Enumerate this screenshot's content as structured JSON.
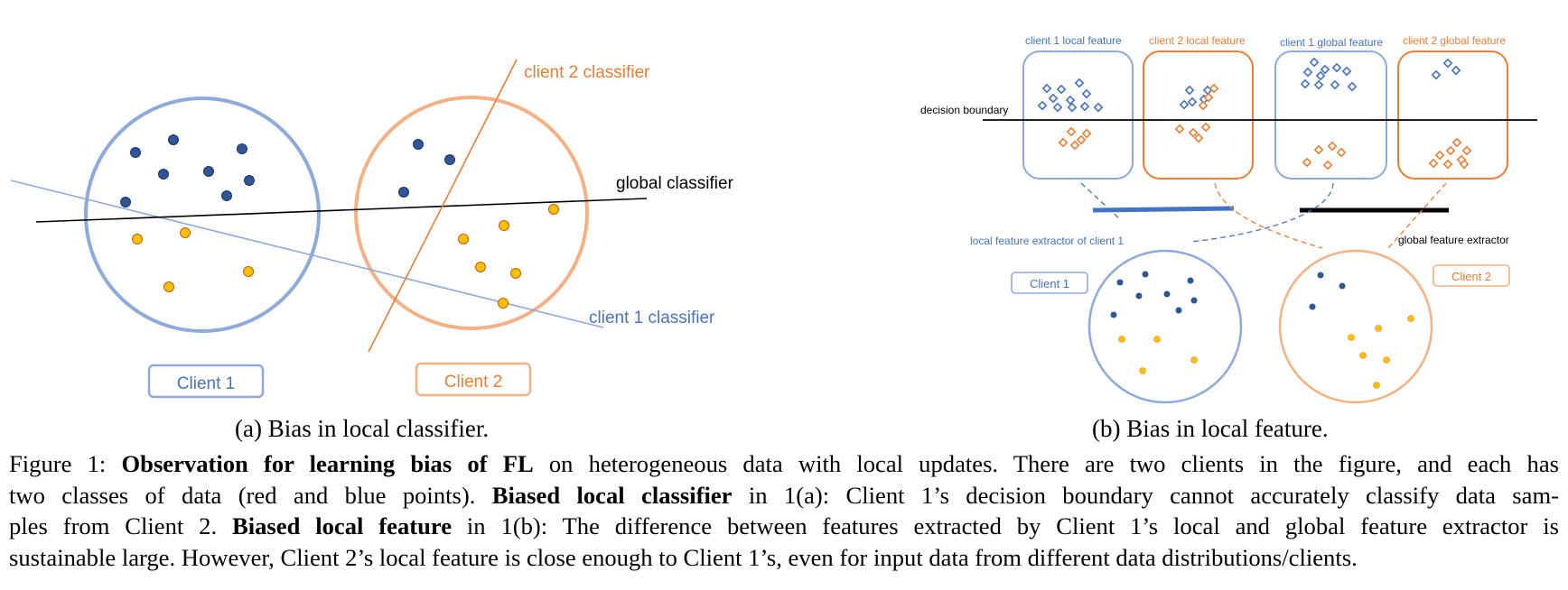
{
  "panel_a": {
    "labels": {
      "client2_classifier": "client 2 classifier",
      "global_classifier": "global classifier",
      "client1_classifier": "client 1 classifier"
    },
    "client_boxes": {
      "client1": "Client 1",
      "client2": "Client 2"
    },
    "colors": {
      "client1": "#8eaadb",
      "client2": "#f4b183",
      "blue_point": "#2f5597",
      "orange_point": "#ffc000",
      "client1_line": "#8eaadb",
      "client2_line": "#ed7d31",
      "global_line": "#000000"
    }
  },
  "panel_b": {
    "feature_labels": {
      "c1_local": "client 1 local feature",
      "c2_local": "client 2 local feature",
      "c1_global": "client 1 global feature",
      "c2_global": "client 2 global feature"
    },
    "decision_boundary": "decision boundary",
    "local_extractor": "local feature extractor of client 1",
    "global_extractor": "global feature extractor",
    "client_boxes": {
      "client1": "Client 1",
      "client2": "Client 2"
    },
    "colors": {
      "blue": "#4472c4",
      "orange": "#ed7d31",
      "client1_border": "#8eaadb",
      "client2_border": "#f4b183"
    }
  },
  "subcaptions": {
    "a_tag": "(a)",
    "a_text": "Bias in local classifier.",
    "b_tag": "(b)",
    "b_text": "Bias in local feature."
  },
  "caption": {
    "lines": [
      [
        {
          "t": "Figure 1: ",
          "b": false
        },
        {
          "t": "Observation for learning bias of FL",
          "b": true
        },
        {
          "t": " on heterogeneous data with local updates. There are two clients in the figure, and each has",
          "b": false
        }
      ],
      [
        {
          "t": "two classes of data (red and blue points). ",
          "b": false
        },
        {
          "t": "Biased local classifier",
          "b": true
        },
        {
          "t": " in 1(a): Client 1’s decision boundary cannot accurately classify data sam-",
          "b": false
        }
      ],
      [
        {
          "t": "ples from Client 2. ",
          "b": false
        },
        {
          "t": "Biased local feature",
          "b": true
        },
        {
          "t": " in 1(b): The difference between features extracted by Client 1’s local and global feature extractor is",
          "b": false
        }
      ],
      [
        {
          "t": "sustainable large. However, Client 2’s local feature is close enough to Client 1’s, even for input data from different data distributions/clients.",
          "b": false
        }
      ]
    ]
  }
}
